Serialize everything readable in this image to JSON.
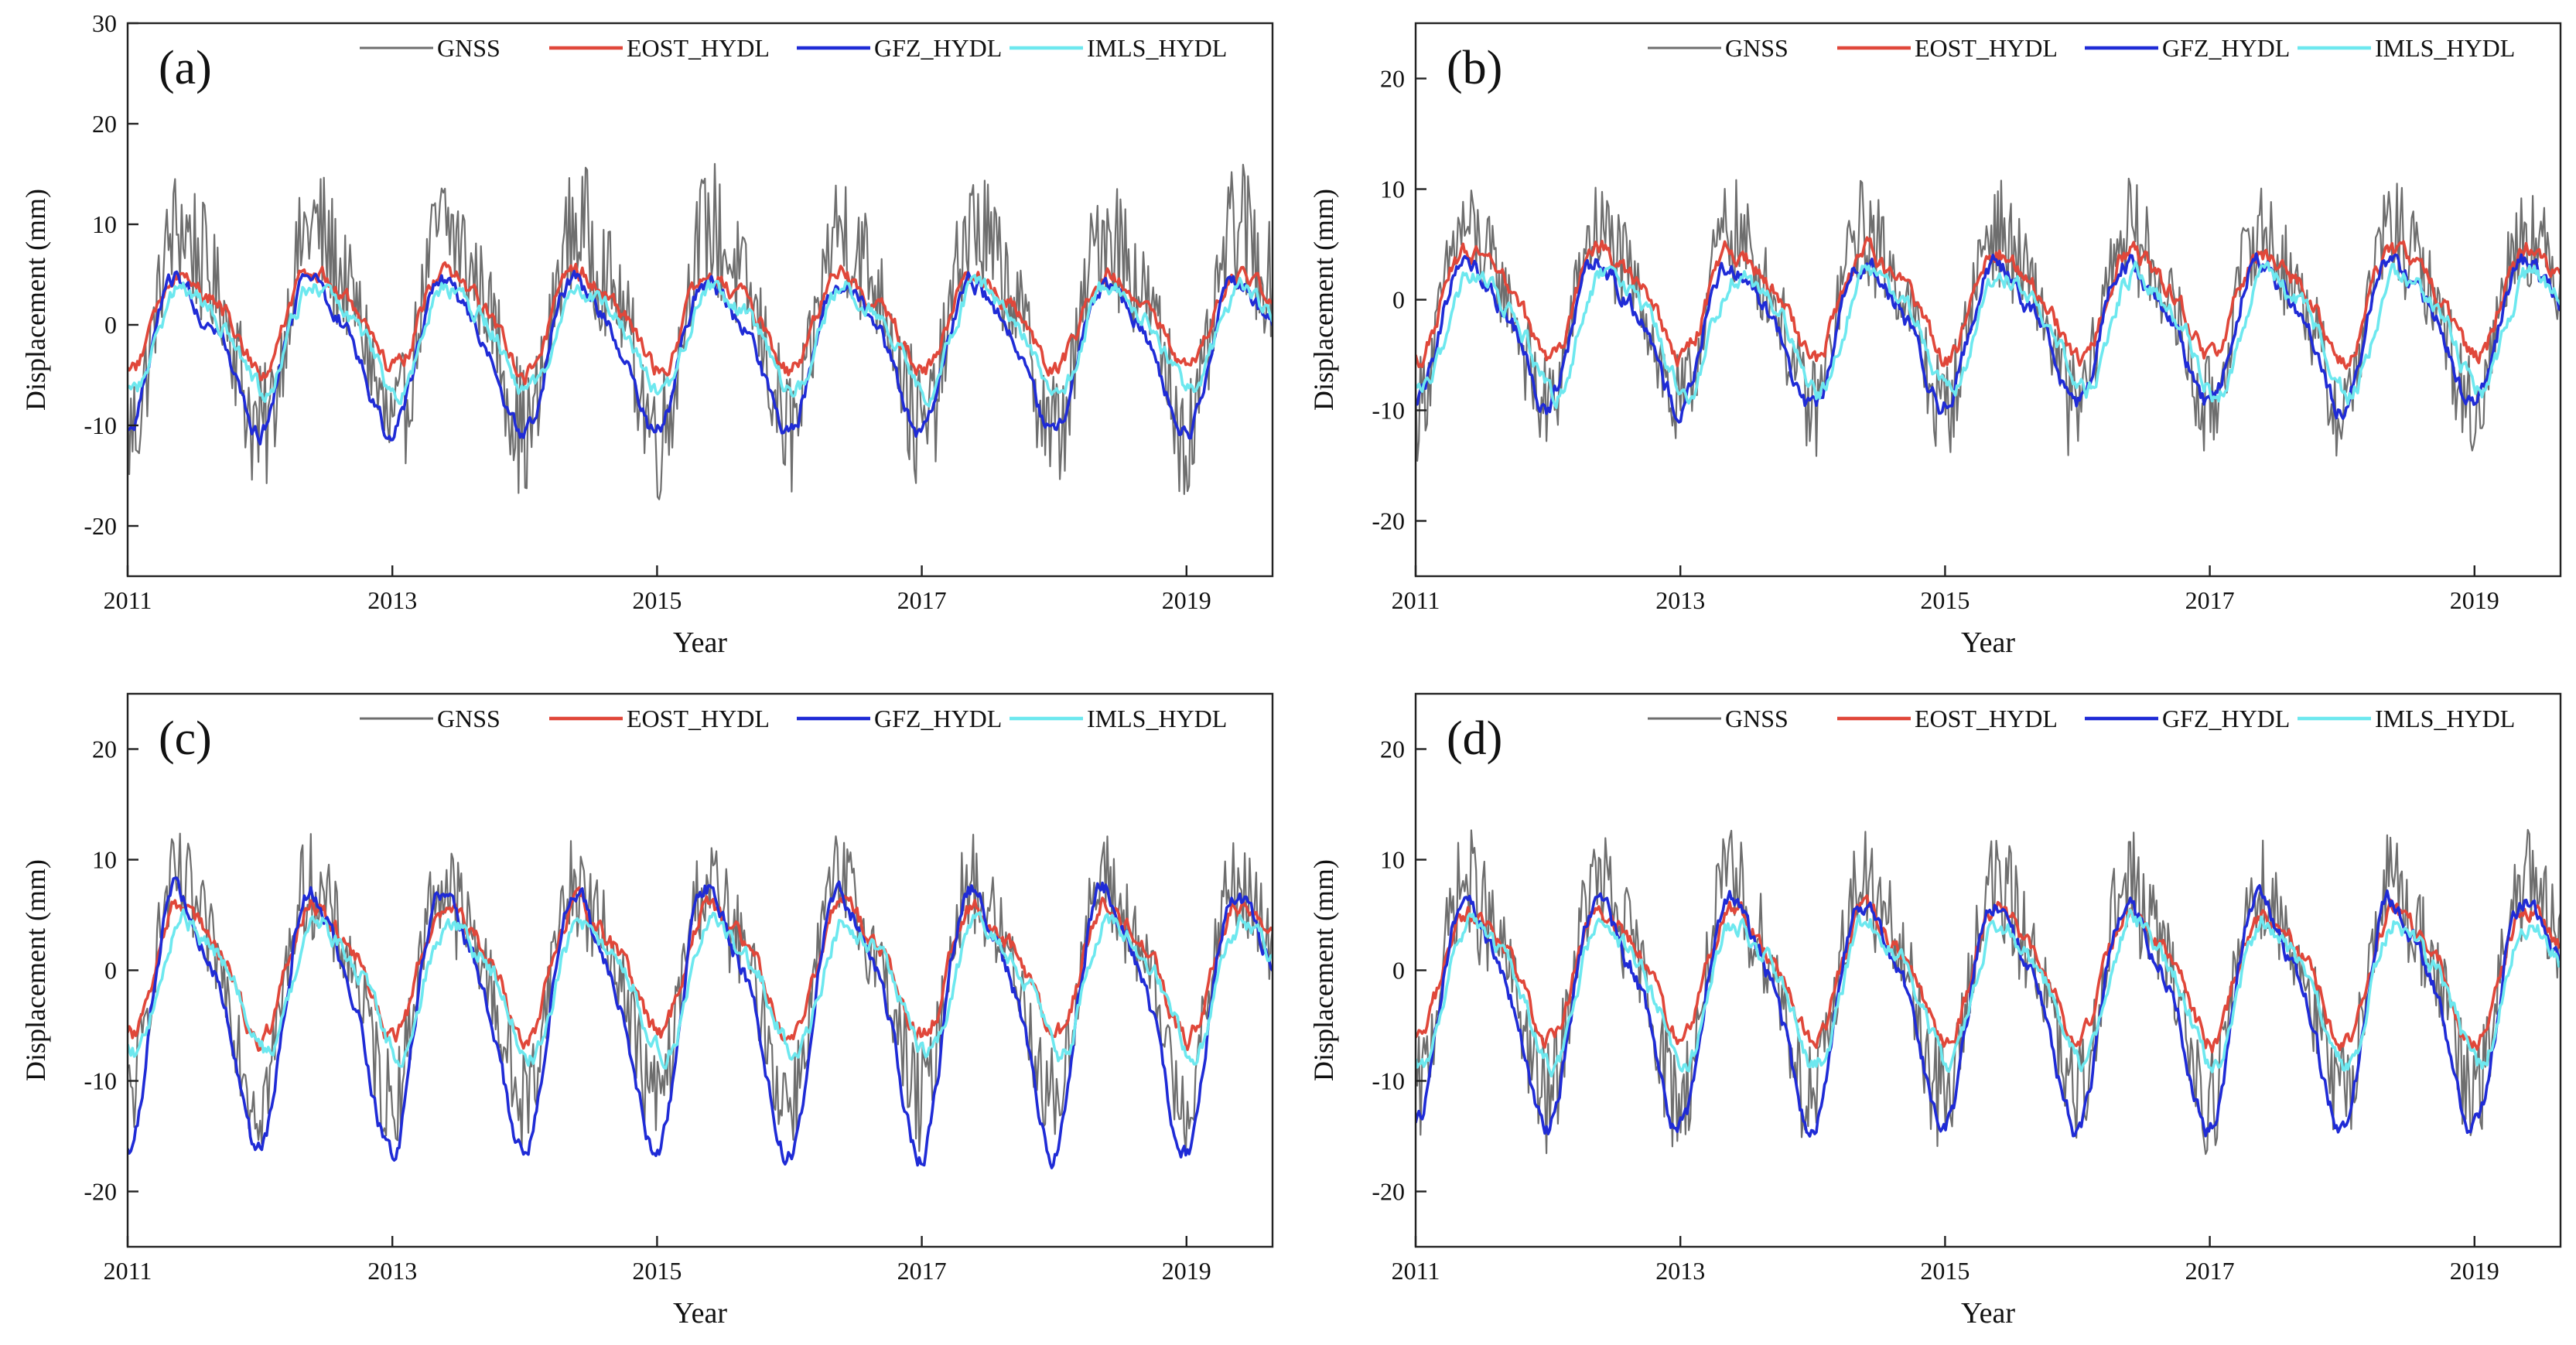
{
  "chart_data": [
    {
      "panel": "(a)",
      "type": "line",
      "xlabel": "Year",
      "ylabel": "Displacement (mm)",
      "xlim": [
        2011,
        2019.65
      ],
      "ylim": [
        -25,
        30
      ],
      "xticks": [
        2011,
        2013,
        2015,
        2017,
        2019
      ],
      "yticks": [
        -20,
        -10,
        0,
        10,
        20,
        30
      ],
      "legend_position": "top",
      "series": [
        {
          "name": "GNSS",
          "color": "#6e6e6e",
          "amplitude": 9.5,
          "offset": 0.5,
          "noise": 7.0,
          "phase": 0.22
        },
        {
          "name": "EOST_HYDL",
          "color": "#e0473a",
          "amplitude": 4.5,
          "offset": 0.8,
          "phase": 0.22
        },
        {
          "name": "GFZ_HYDL",
          "color": "#1f2bd6",
          "amplitude": 7.0,
          "offset": -2.5,
          "phase": 0.2
        },
        {
          "name": "IMLS_HYDL",
          "color": "#6de8ef",
          "amplitude": 4.8,
          "offset": -1.0,
          "phase": 0.24
        }
      ]
    },
    {
      "panel": "(b)",
      "type": "line",
      "xlabel": "Year",
      "ylabel": "Displacement (mm)",
      "xlim": [
        2011,
        2019.65
      ],
      "ylim": [
        -25,
        25
      ],
      "xticks": [
        2011,
        2013,
        2015,
        2017,
        2019
      ],
      "yticks": [
        -20,
        -10,
        0,
        10,
        20
      ],
      "legend_position": "top",
      "series": [
        {
          "name": "GNSS",
          "color": "#6e6e6e",
          "amplitude": 7.5,
          "offset": -1.0,
          "noise": 5.0,
          "phase": 0.2
        },
        {
          "name": "EOST_HYDL",
          "color": "#e0473a",
          "amplitude": 4.5,
          "offset": 0.0,
          "phase": 0.22
        },
        {
          "name": "GFZ_HYDL",
          "color": "#1f2bd6",
          "amplitude": 6.0,
          "offset": -2.5,
          "phase": 0.2
        },
        {
          "name": "IMLS_HYDL",
          "color": "#6de8ef",
          "amplitude": 5.0,
          "offset": -2.5,
          "phase": 0.26
        }
      ]
    },
    {
      "panel": "(c)",
      "type": "line",
      "xlabel": "Year",
      "ylabel": "Displacement (mm)",
      "xlim": [
        2011,
        2019.65
      ],
      "ylim": [
        -25,
        25
      ],
      "xticks": [
        2011,
        2013,
        2015,
        2017,
        2019
      ],
      "yticks": [
        -20,
        -10,
        0,
        10,
        20
      ],
      "legend_position": "top",
      "series": [
        {
          "name": "GNSS",
          "color": "#6e6e6e",
          "amplitude": 9.0,
          "offset": -1.0,
          "noise": 5.0,
          "phase": 0.2
        },
        {
          "name": "EOST_HYDL",
          "color": "#e0473a",
          "amplitude": 5.5,
          "offset": 0.5,
          "phase": 0.22
        },
        {
          "name": "GFZ_HYDL",
          "color": "#1f2bd6",
          "amplitude": 11.0,
          "offset": -3.5,
          "phase": 0.2
        },
        {
          "name": "IMLS_HYDL",
          "color": "#6de8ef",
          "amplitude": 5.5,
          "offset": -1.0,
          "phase": 0.26
        }
      ]
    },
    {
      "panel": "(d)",
      "type": "line",
      "xlabel": "Year",
      "ylabel": "Displacement (mm)",
      "xlim": [
        2011,
        2019.65
      ],
      "ylim": [
        -25,
        25
      ],
      "xticks": [
        2011,
        2013,
        2015,
        2017,
        2019
      ],
      "yticks": [
        -20,
        -10,
        0,
        10,
        20
      ],
      "legend_position": "top",
      "series": [
        {
          "name": "GNSS",
          "color": "#6e6e6e",
          "amplitude": 9.0,
          "offset": -1.0,
          "noise": 5.5,
          "phase": 0.2
        },
        {
          "name": "EOST_HYDL",
          "color": "#e0473a",
          "amplitude": 5.5,
          "offset": 0.0,
          "phase": 0.22
        },
        {
          "name": "GFZ_HYDL",
          "color": "#1f2bd6",
          "amplitude": 9.5,
          "offset": -3.0,
          "phase": 0.2
        },
        {
          "name": "IMLS_HYDL",
          "color": "#6de8ef",
          "amplitude": 6.0,
          "offset": -1.5,
          "phase": 0.24
        }
      ]
    }
  ]
}
